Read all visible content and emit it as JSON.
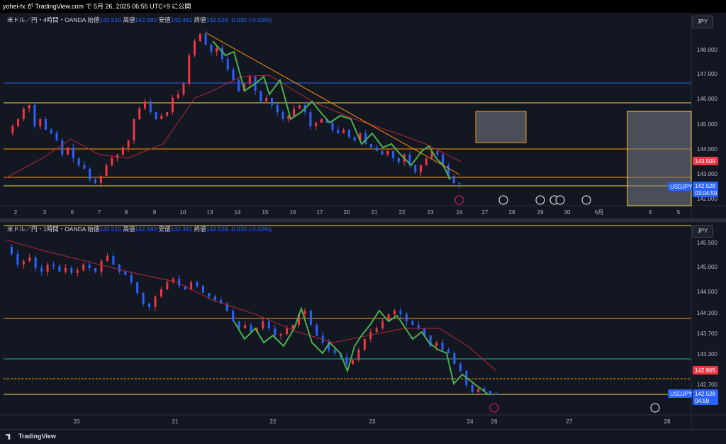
{
  "header": {
    "title": "yohei-fx が TradingView.com で 5月 26, 2025 06:55 UTC+9 に公開"
  },
  "top": {
    "legend": {
      "name": "米ドル／円・4時間・OANDA",
      "o_label": "始値",
      "o": "142.510",
      "h_label": "高値",
      "h": "142.580",
      "l_label": "安値",
      "l": "142.461",
      "c_label": "終値",
      "c": "142.528",
      "chg": "-0.030 (-0.02%)"
    },
    "currency": "JPY",
    "price_ticks": [
      "148.000",
      "147.000",
      "146.000",
      "145.000",
      "144.000",
      "143.000",
      "142.000"
    ],
    "date_ticks": [
      "2",
      "3",
      "6",
      "7",
      "8",
      "9",
      "10",
      "13",
      "14",
      "15",
      "16",
      "17",
      "20",
      "21",
      "22",
      "23",
      "24",
      "27",
      "28",
      "29",
      "30",
      "6月",
      "4",
      "5"
    ],
    "tags": {
      "red_price": "143.509",
      "symbol": "USDJPY",
      "last_price": "142.528",
      "countdown": "03:04:59"
    }
  },
  "bottom": {
    "legend": {
      "name": "米ドル／円・1時間・OANDA",
      "o_label": "始値",
      "o": "142.510",
      "h_label": "高値",
      "h": "142.580",
      "l_label": "安値",
      "l": "142.461",
      "c_label": "終値",
      "c": "142.528",
      "chg": "-0.030 (-0.02%)"
    },
    "currency": "JPY",
    "price_ticks": [
      "145.500",
      "145.000",
      "144.500",
      "144.100",
      "143.700",
      "143.300",
      "142.700"
    ],
    "date_ticks": [
      "20",
      "21",
      "22",
      "23",
      "24",
      "26",
      "27",
      "28"
    ],
    "tags": {
      "red_price": "142.965",
      "symbol": "USDJPY",
      "last_price": "142.528",
      "countdown": "04:59"
    }
  },
  "footer": {
    "brand": "TradingView"
  },
  "colors": {
    "up": "#26a69a",
    "down": "#2962ff",
    "red": "#f23645",
    "orange": "#ff9800",
    "yellow": "#f5d742",
    "green": "#4caf50",
    "ma": "#b22833"
  }
}
